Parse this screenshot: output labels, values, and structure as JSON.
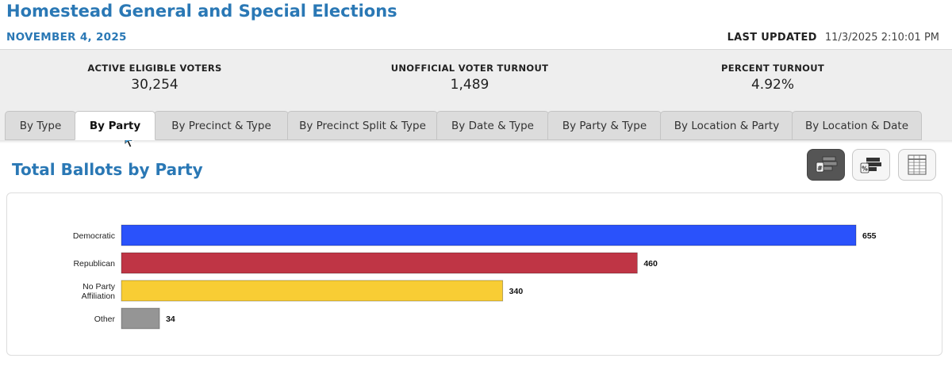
{
  "header": {
    "title": "Homestead General and Special Elections",
    "date": "NOVEMBER 4, 2025",
    "last_updated_label": "LAST UPDATED",
    "last_updated_value": "11/3/2025 2:10:01 PM"
  },
  "stats": [
    {
      "label": "ACTIVE ELIGIBLE VOTERS",
      "value": "30,254"
    },
    {
      "label": "UNOFFICIAL VOTER TURNOUT",
      "value": "1,489"
    },
    {
      "label": "PERCENT TURNOUT",
      "value": "4.92%"
    }
  ],
  "tabs": [
    {
      "label": "By Type",
      "active": false
    },
    {
      "label": "By Party",
      "active": true
    },
    {
      "label": "By Precinct & Type",
      "active": false
    },
    {
      "label": "By Precinct Split & Type",
      "active": false
    },
    {
      "label": "By Date & Type",
      "active": false
    },
    {
      "label": "By Party & Type",
      "active": false
    },
    {
      "label": "By Location & Party",
      "active": false
    },
    {
      "label": "By Location & Date",
      "active": false
    }
  ],
  "section_title": "Total Ballots by Party",
  "view_buttons": [
    {
      "icon": "count-bar-chart-icon",
      "active": true
    },
    {
      "icon": "percent-bar-chart-icon",
      "active": false
    },
    {
      "icon": "table-view-icon",
      "active": false
    }
  ],
  "chart_data": {
    "type": "bar",
    "orientation": "horizontal",
    "categories": [
      [
        "Democratic"
      ],
      [
        "Republican"
      ],
      [
        "No Party",
        "Affiliation"
      ],
      [
        "Other"
      ]
    ],
    "values": [
      655,
      460,
      340,
      34
    ],
    "value_labels": [
      "655",
      "460",
      "340",
      "34"
    ],
    "colors": [
      "#2a52fb",
      "#bf3545",
      "#f8cd34",
      "#959595"
    ],
    "xlim": [
      0,
      655
    ],
    "grid": false,
    "legend": "none"
  }
}
